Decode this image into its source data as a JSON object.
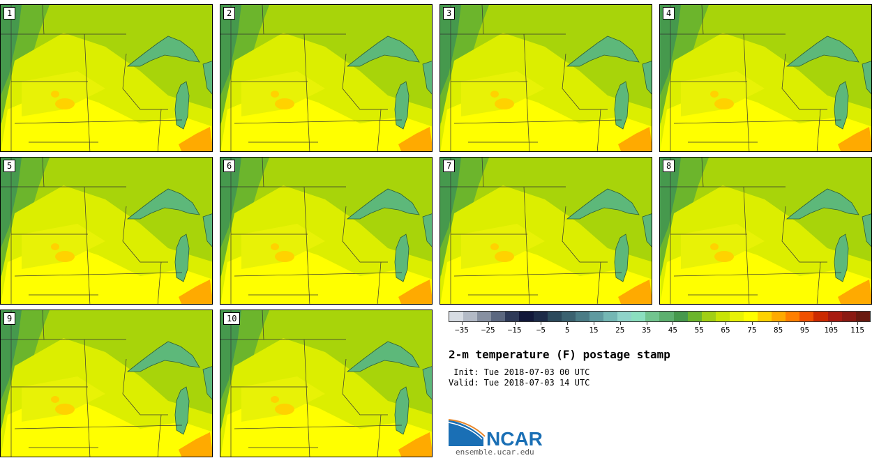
{
  "panels": [
    {
      "label": "1"
    },
    {
      "label": "2"
    },
    {
      "label": "3"
    },
    {
      "label": "4"
    },
    {
      "label": "5"
    },
    {
      "label": "6"
    },
    {
      "label": "7"
    },
    {
      "label": "8"
    },
    {
      "label": "9"
    },
    {
      "label": "10"
    }
  ],
  "colorbar": {
    "colors": [
      "#d7dce3",
      "#b3bac6",
      "#8790a1",
      "#5c6880",
      "#2e3a58",
      "#12183a",
      "#1d2b48",
      "#2c4a5c",
      "#3b6270",
      "#4b7c86",
      "#5f9aa0",
      "#74b7b4",
      "#8fd3c9",
      "#8bdfbf",
      "#72c58f",
      "#5db06f",
      "#46994d",
      "#6cb52c",
      "#a1cf14",
      "#c8e405",
      "#e8f206",
      "#ffff00",
      "#ffd200",
      "#ffaa00",
      "#ff7f00",
      "#f05000",
      "#cc2a00",
      "#a81b10",
      "#8b1a12",
      "#6a1a10"
    ],
    "tick_labels": [
      "−35",
      "−25",
      "−15",
      "−5",
      "5",
      "15",
      "25",
      "35",
      "45",
      "55",
      "65",
      "75",
      "85",
      "95",
      "105",
      "115"
    ],
    "range": [
      -35,
      115
    ],
    "min": -40,
    "max": 120
  },
  "title": "2-m temperature (F) postage stamp",
  "init": " Init: Tue 2018-07-03 00 UTC",
  "valid": "Valid: Tue 2018-07-03 14 UTC",
  "logo_text": "NCAR",
  "url": "ensemble.ucar.edu",
  "colors": {
    "light_green": "#a8d40a",
    "mid_green": "#6cb52c",
    "dark_green": "#46994d",
    "yellow_green": "#dcee00",
    "yellow": "#ffff00",
    "orange": "#ffaa00",
    "lake": "#5db87a",
    "ncar_blue": "#1a6fb5"
  }
}
